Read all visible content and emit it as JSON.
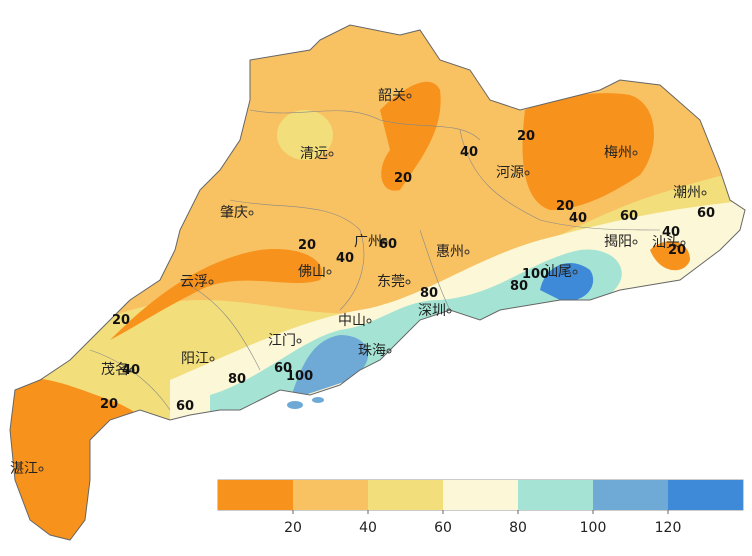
{
  "cities": [
    "韶关",
    "清远",
    "河源",
    "梅州",
    "潮州",
    "肇庆",
    "广州",
    "惠州",
    "揭阳",
    "汕头",
    "云浮",
    "佛山",
    "东莞",
    "汕尾",
    "中山",
    "深圳",
    "江门",
    "珠海",
    "阳江",
    "茂名",
    "湛江"
  ],
  "contour_labels": [
    20,
    40,
    20,
    20,
    40,
    60,
    60,
    40,
    20,
    20,
    40,
    60,
    80,
    80,
    100,
    20,
    40,
    80,
    100,
    60,
    20,
    60
  ],
  "legend": {
    "colors": [
      "#f7921c",
      "#f8c162",
      "#f2de7b",
      "#fcf7d6",
      "#a5e4d4",
      "#6faad6",
      "#3f8ad8"
    ],
    "ticks": [
      20,
      40,
      60,
      80,
      100,
      120
    ]
  }
}
